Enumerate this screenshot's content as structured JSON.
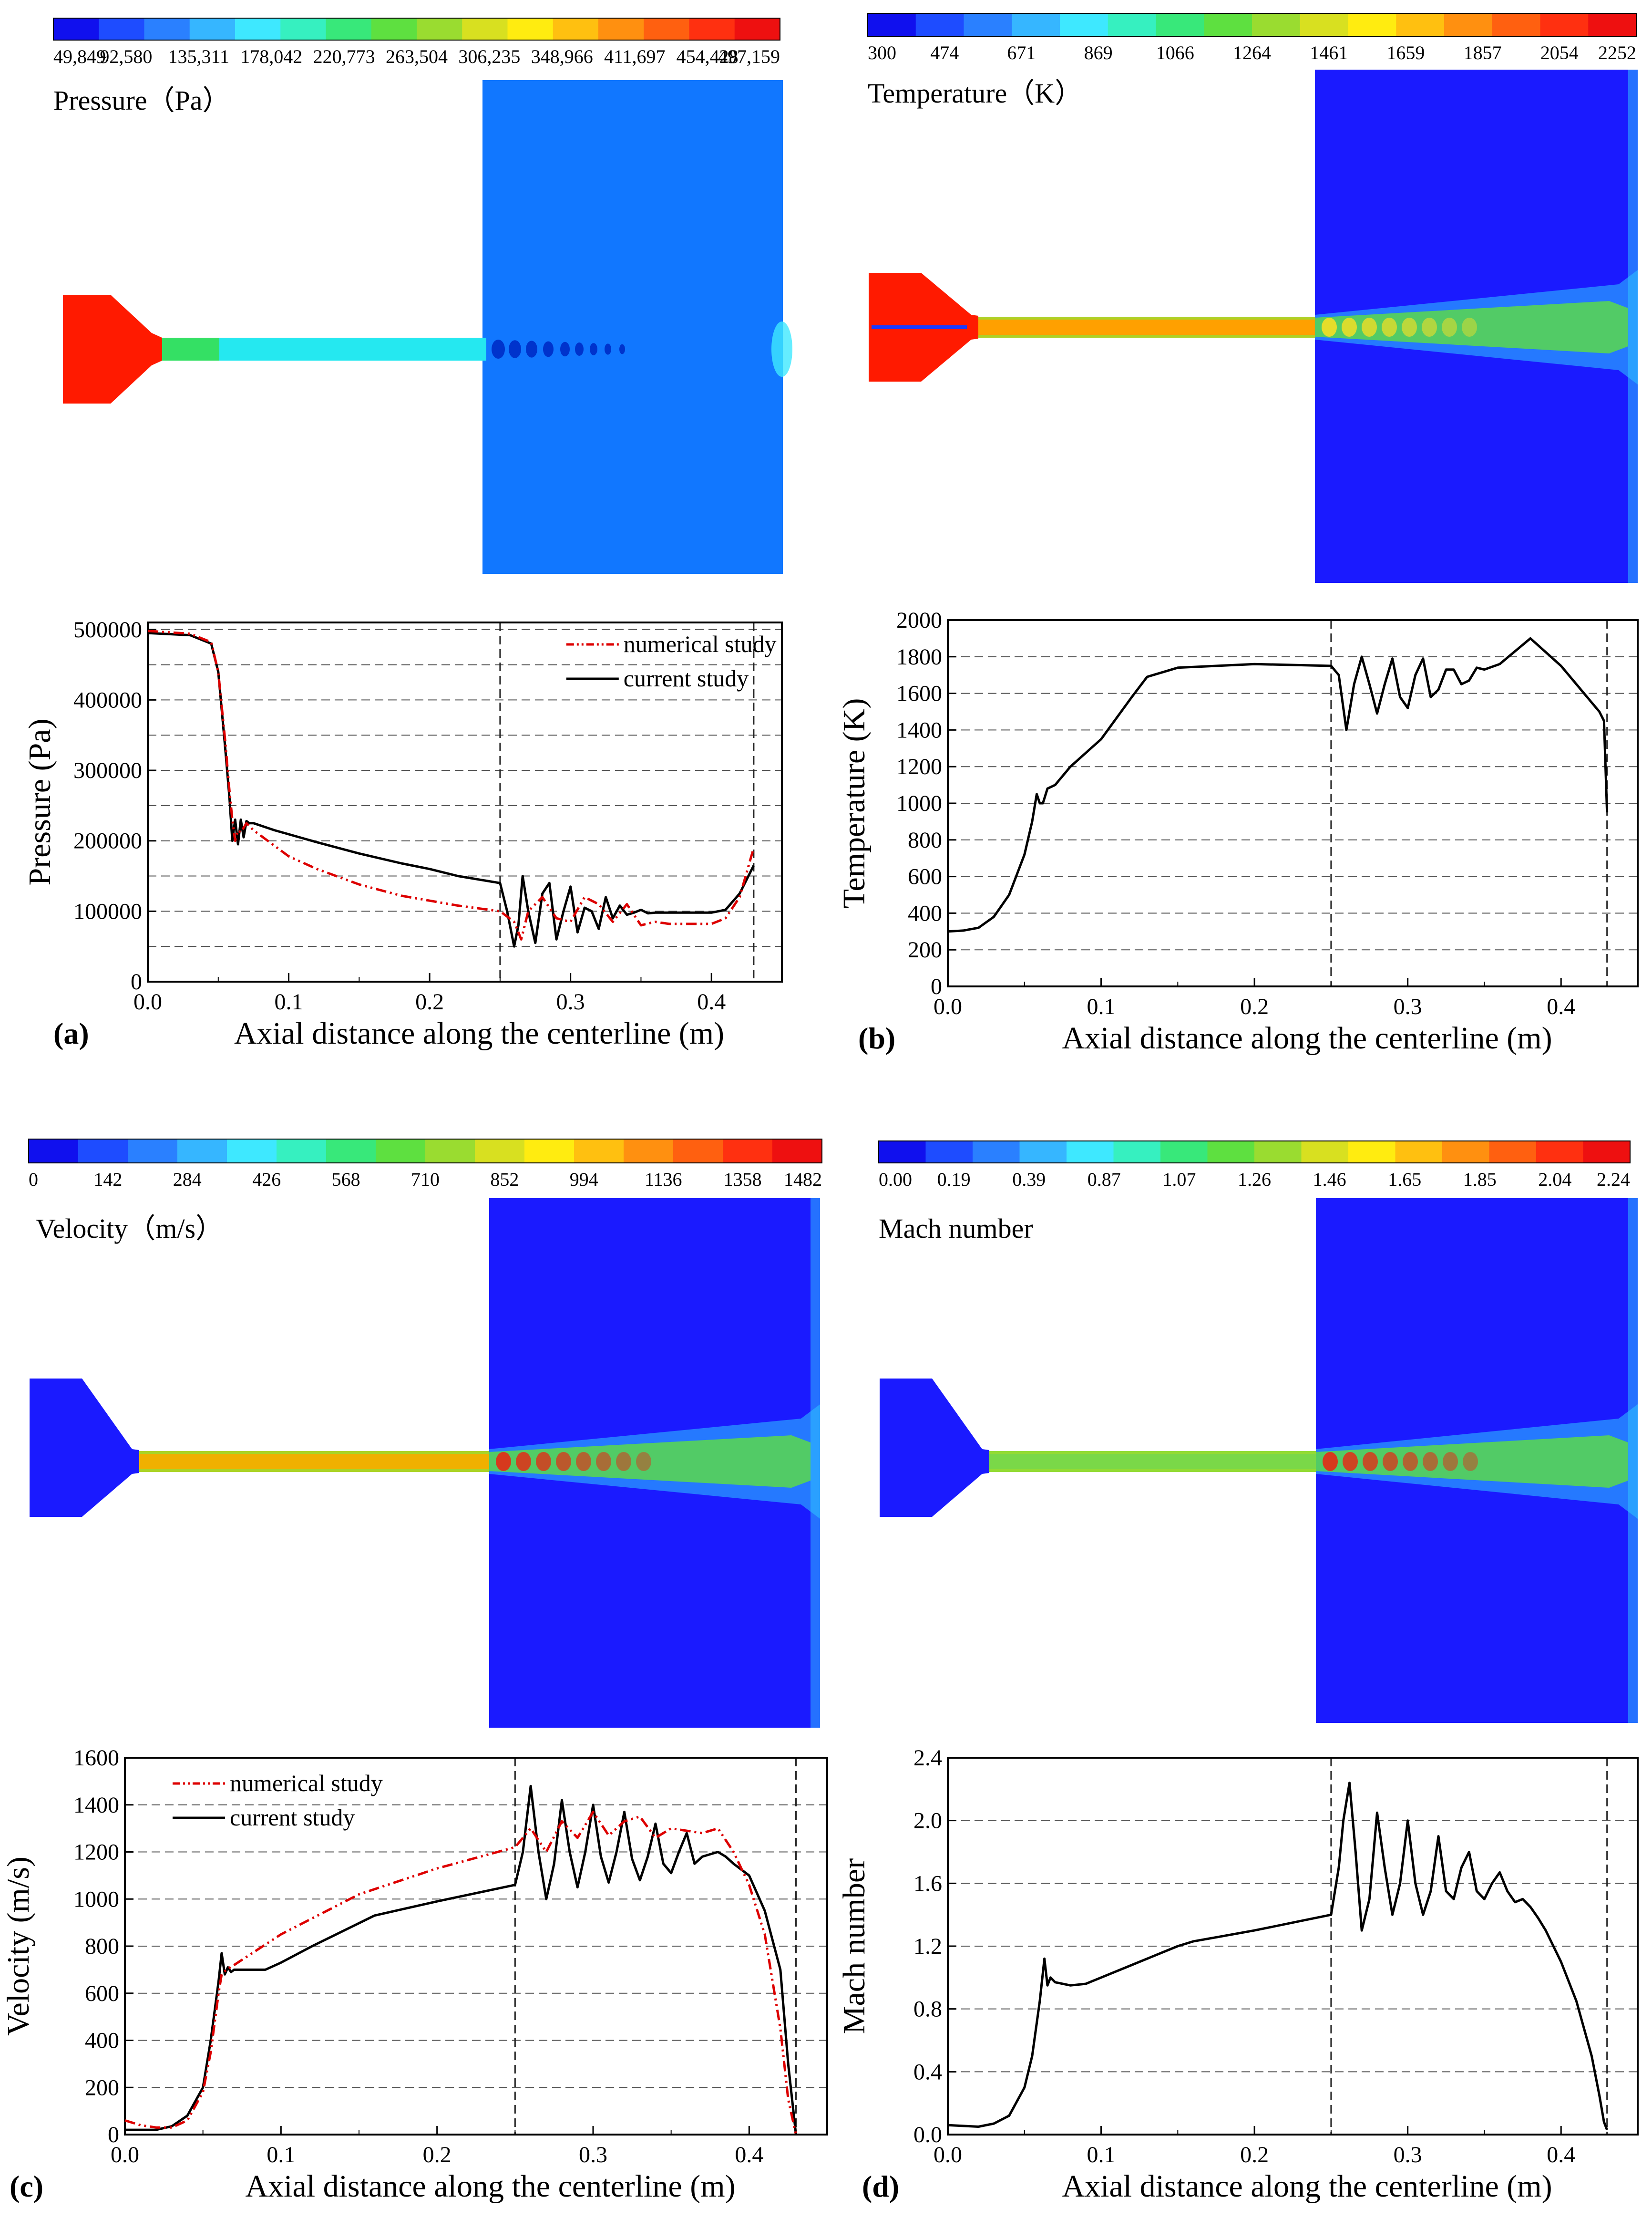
{
  "panels": [
    {
      "id": "a",
      "field": {
        "title": "Pressure（Pa）",
        "colorbar_ticks": [
          "49,849",
          "92,580",
          "135,311",
          "178,042",
          "220,773",
          "263,504",
          "306,235",
          "348,966",
          "411,697",
          "454,428",
          "497,159"
        ],
        "colors": {
          "nozzle": "#ff1a00",
          "channel_in": "#34e064",
          "channel": "#25e8f0",
          "chamber": "#1177ff",
          "shock_cells": "#0033cc"
        }
      },
      "chart_data": {
        "type": "line",
        "panel_label": "(a)",
        "title": "",
        "xlabel": "Axial distance along the centerline (m)",
        "ylabel": "Pressure (Pa)",
        "xlim": [
          0.0,
          0.45
        ],
        "ylim": [
          0,
          510000
        ],
        "x_ticks": [
          0.0,
          0.1,
          0.2,
          0.3,
          0.4
        ],
        "x_tick_labels": [
          "0.0",
          "0.1",
          "0.2",
          "0.3",
          "0.4"
        ],
        "y_ticks": [
          0,
          100000,
          200000,
          300000,
          400000,
          500000
        ],
        "y_tick_labels": [
          "0",
          "100000",
          "200000",
          "300000",
          "400000",
          "500000"
        ],
        "grid_y": [
          50000,
          100000,
          150000,
          200000,
          250000,
          300000,
          350000,
          400000,
          450000,
          500000
        ],
        "vlines": [
          0.25,
          0.43
        ],
        "legend": {
          "entries": [
            "numerical study",
            "current study"
          ],
          "placement": "top-right"
        },
        "series": [
          {
            "name": "current study",
            "color": "#000000",
            "dash": "solid",
            "x": [
              0,
              0.03,
              0.045,
              0.05,
              0.055,
              0.058,
              0.06,
              0.062,
              0.064,
              0.066,
              0.068,
              0.07,
              0.072,
              0.075,
              0.09,
              0.12,
              0.15,
              0.18,
              0.2,
              0.22,
              0.25,
              0.255,
              0.26,
              0.263,
              0.266,
              0.27,
              0.275,
              0.28,
              0.285,
              0.29,
              0.295,
              0.3,
              0.305,
              0.31,
              0.315,
              0.32,
              0.325,
              0.33,
              0.335,
              0.34,
              0.345,
              0.35,
              0.355,
              0.36,
              0.4,
              0.41,
              0.42,
              0.43
            ],
            "y": [
              495000,
              492000,
              480000,
              440000,
              330000,
              260000,
              200000,
              230000,
              195000,
              230000,
              205000,
              228000,
              225000,
              225000,
              215000,
              198000,
              182000,
              168000,
              160000,
              150000,
              140000,
              100000,
              50000,
              80000,
              150000,
              100000,
              55000,
              125000,
              140000,
              60000,
              100000,
              135000,
              70000,
              105000,
              100000,
              75000,
              120000,
              90000,
              108000,
              95000,
              98000,
              102000,
              97000,
              98000,
              98000,
              102000,
              125000,
              165000
            ]
          },
          {
            "name": "numerical study",
            "color": "#dd0000",
            "dash": "dashdotdot",
            "x": [
              0,
              0.03,
              0.045,
              0.05,
              0.055,
              0.058,
              0.06,
              0.062,
              0.064,
              0.066,
              0.07,
              0.075,
              0.1,
              0.12,
              0.15,
              0.18,
              0.2,
              0.22,
              0.25,
              0.26,
              0.265,
              0.27,
              0.28,
              0.29,
              0.3,
              0.31,
              0.32,
              0.33,
              0.34,
              0.35,
              0.36,
              0.37,
              0.4,
              0.41,
              0.42,
              0.43
            ],
            "y": [
              498000,
              494000,
              482000,
              440000,
              340000,
              270000,
              230000,
              200000,
              215000,
              212000,
              225000,
              215000,
              178000,
              160000,
              138000,
              122000,
              115000,
              108000,
              100000,
              85000,
              60000,
              100000,
              120000,
              90000,
              85000,
              120000,
              110000,
              85000,
              110000,
              80000,
              85000,
              82000,
              82000,
              90000,
              120000,
              190000
            ]
          }
        ]
      }
    },
    {
      "id": "b",
      "field": {
        "title": "Temperature（K）",
        "colorbar_ticks": [
          "300",
          "474",
          "671",
          "869",
          "1066",
          "1264",
          "1461",
          "1659",
          "1857",
          "2054",
          "2252"
        ],
        "colors": {
          "nozzle": "#ff1a00",
          "jet": "#ffa000",
          "chamber": "#1a1aff",
          "plume_edge": "#30c8ff"
        }
      },
      "chart_data": {
        "type": "line",
        "panel_label": "(b)",
        "title": "",
        "xlabel": "Axial distance along the centerline (m)",
        "ylabel": "Temperature (K)",
        "xlim": [
          0.0,
          0.45
        ],
        "ylim": [
          0,
          2000
        ],
        "x_ticks": [
          0.0,
          0.1,
          0.2,
          0.3,
          0.4
        ],
        "x_tick_labels": [
          "0.0",
          "0.1",
          "0.2",
          "0.3",
          "0.4"
        ],
        "y_ticks": [
          0,
          200,
          400,
          600,
          800,
          1000,
          1200,
          1400,
          1600,
          1800,
          2000
        ],
        "y_tick_labels": [
          "0",
          "200",
          "400",
          "600",
          "800",
          "1000",
          "1200",
          "1400",
          "1600",
          "1800",
          "2000"
        ],
        "grid_y": [
          200,
          400,
          600,
          800,
          1000,
          1200,
          1400,
          1600,
          1800
        ],
        "vlines": [
          0.25,
          0.43
        ],
        "series": [
          {
            "name": "temperature",
            "color": "#000000",
            "dash": "solid",
            "x": [
              0,
              0.01,
              0.02,
              0.03,
              0.04,
              0.05,
              0.055,
              0.058,
              0.06,
              0.062,
              0.065,
              0.07,
              0.08,
              0.1,
              0.12,
              0.13,
              0.15,
              0.2,
              0.25,
              0.255,
              0.26,
              0.265,
              0.27,
              0.275,
              0.28,
              0.285,
              0.29,
              0.295,
              0.3,
              0.305,
              0.31,
              0.315,
              0.32,
              0.325,
              0.33,
              0.335,
              0.34,
              0.345,
              0.35,
              0.36,
              0.38,
              0.4,
              0.42,
              0.425,
              0.428,
              0.43
            ],
            "y": [
              300,
              305,
              320,
              380,
              500,
              720,
              900,
              1050,
              1000,
              1000,
              1080,
              1100,
              1200,
              1350,
              1580,
              1690,
              1740,
              1760,
              1750,
              1700,
              1400,
              1650,
              1800,
              1650,
              1490,
              1650,
              1790,
              1580,
              1520,
              1700,
              1790,
              1580,
              1620,
              1730,
              1730,
              1650,
              1670,
              1740,
              1730,
              1760,
              1900,
              1750,
              1550,
              1500,
              1450,
              950
            ]
          }
        ]
      }
    },
    {
      "id": "c",
      "field": {
        "title": "Velocity（m/s）",
        "colorbar_ticks": [
          "0",
          "142",
          "284",
          "426",
          "568",
          "710",
          "852",
          "994",
          "1136",
          "1358",
          "1482"
        ],
        "colors": {
          "nozzle": "#1a1aff",
          "jet": "#f0b000",
          "chamber": "#1a1aff",
          "plume_edge": "#30c8ff"
        }
      },
      "chart_data": {
        "type": "line",
        "panel_label": "(c)",
        "title": "",
        "xlabel": "Axial distance along the centerline (m)",
        "ylabel": "Velocity (m/s)",
        "xlim": [
          0.0,
          0.45
        ],
        "ylim": [
          0,
          1600
        ],
        "x_ticks": [
          0.0,
          0.1,
          0.2,
          0.3,
          0.4
        ],
        "x_tick_labels": [
          "0.0",
          "0.1",
          "0.2",
          "0.3",
          "0.4"
        ],
        "y_ticks": [
          0,
          200,
          400,
          600,
          800,
          1000,
          1200,
          1400,
          1600
        ],
        "y_tick_labels": [
          "0",
          "200",
          "400",
          "600",
          "800",
          "1000",
          "1200",
          "1400",
          "1600"
        ],
        "grid_y": [
          200,
          400,
          600,
          800,
          1000,
          1200,
          1400
        ],
        "vlines": [
          0.25,
          0.43
        ],
        "legend": {
          "entries": [
            "numerical study",
            "current study"
          ],
          "placement": "top-left"
        },
        "series": [
          {
            "name": "current study",
            "color": "#000000",
            "dash": "solid",
            "x": [
              0,
              0.02,
              0.03,
              0.04,
              0.05,
              0.055,
              0.06,
              0.062,
              0.064,
              0.066,
              0.068,
              0.07,
              0.09,
              0.1,
              0.12,
              0.16,
              0.2,
              0.25,
              0.255,
              0.26,
              0.265,
              0.27,
              0.275,
              0.28,
              0.285,
              0.29,
              0.295,
              0.3,
              0.305,
              0.31,
              0.315,
              0.32,
              0.325,
              0.33,
              0.335,
              0.34,
              0.345,
              0.35,
              0.355,
              0.36,
              0.365,
              0.37,
              0.375,
              0.38,
              0.385,
              0.39,
              0.4,
              0.41,
              0.42,
              0.425,
              0.43
            ],
            "y": [
              20,
              20,
              35,
              80,
              200,
              400,
              650,
              770,
              680,
              710,
              690,
              700,
              700,
              730,
              800,
              930,
              990,
              1060,
              1200,
              1480,
              1200,
              1000,
              1150,
              1420,
              1200,
              1050,
              1200,
              1400,
              1180,
              1070,
              1200,
              1370,
              1170,
              1080,
              1180,
              1320,
              1150,
              1110,
              1200,
              1280,
              1150,
              1180,
              1190,
              1200,
              1180,
              1150,
              1100,
              950,
              700,
              300,
              0
            ]
          },
          {
            "name": "numerical study",
            "color": "#dd0000",
            "dash": "dashdotdot",
            "x": [
              0,
              0.01,
              0.02,
              0.03,
              0.04,
              0.05,
              0.055,
              0.06,
              0.062,
              0.065,
              0.07,
              0.1,
              0.15,
              0.2,
              0.25,
              0.26,
              0.27,
              0.28,
              0.29,
              0.3,
              0.31,
              0.32,
              0.33,
              0.34,
              0.35,
              0.36,
              0.37,
              0.38,
              0.39,
              0.4,
              0.41,
              0.42,
              0.425,
              0.43
            ],
            "y": [
              60,
              40,
              30,
              30,
              60,
              180,
              350,
              600,
              680,
              700,
              720,
              850,
              1020,
              1130,
              1220,
              1300,
              1200,
              1330,
              1260,
              1370,
              1270,
              1330,
              1350,
              1260,
              1300,
              1290,
              1280,
              1300,
              1200,
              1060,
              850,
              450,
              150,
              0
            ]
          }
        ]
      }
    },
    {
      "id": "d",
      "field": {
        "title": "Mach number",
        "colorbar_ticks": [
          "0.00",
          "0.19",
          "0.39",
          "0.87",
          "1.07",
          "1.26",
          "1.46",
          "1.65",
          "1.85",
          "2.04",
          "2.24"
        ],
        "colors": {
          "nozzle": "#1a1aff",
          "jet": "#7ad848",
          "chamber": "#1a1aff",
          "plume_edge": "#30c8ff"
        }
      },
      "chart_data": {
        "type": "line",
        "panel_label": "(d)",
        "title": "",
        "xlabel": "Axial distance along the centerline (m)",
        "ylabel": "Mach number",
        "xlim": [
          0.0,
          0.45
        ],
        "ylim": [
          0.0,
          2.4
        ],
        "x_ticks": [
          0.0,
          0.1,
          0.2,
          0.3,
          0.4
        ],
        "x_tick_labels": [
          "0.0",
          "0.1",
          "0.2",
          "0.3",
          "0.4"
        ],
        "y_ticks": [
          0.0,
          0.4,
          0.8,
          1.2,
          1.6,
          2.0,
          2.4
        ],
        "y_tick_labels": [
          "0.0",
          "0.4",
          "0.8",
          "1.2",
          "1.6",
          "2.0",
          "2.4"
        ],
        "grid_y": [
          0.4,
          0.8,
          1.2,
          1.6,
          2.0
        ],
        "vlines": [
          0.25,
          0.43
        ],
        "series": [
          {
            "name": "mach",
            "color": "#000000",
            "dash": "solid",
            "x": [
              0,
              0.02,
              0.03,
              0.04,
              0.05,
              0.055,
              0.06,
              0.063,
              0.065,
              0.067,
              0.07,
              0.08,
              0.09,
              0.1,
              0.12,
              0.15,
              0.16,
              0.2,
              0.25,
              0.255,
              0.258,
              0.262,
              0.266,
              0.27,
              0.275,
              0.28,
              0.285,
              0.29,
              0.295,
              0.3,
              0.305,
              0.31,
              0.315,
              0.32,
              0.325,
              0.33,
              0.335,
              0.34,
              0.345,
              0.35,
              0.355,
              0.36,
              0.365,
              0.37,
              0.375,
              0.38,
              0.385,
              0.39,
              0.4,
              0.41,
              0.42,
              0.425,
              0.428,
              0.43
            ],
            "y": [
              0.06,
              0.05,
              0.07,
              0.12,
              0.3,
              0.5,
              0.85,
              1.12,
              0.95,
              1.0,
              0.97,
              0.95,
              0.96,
              1.0,
              1.08,
              1.2,
              1.23,
              1.3,
              1.4,
              1.7,
              2.0,
              2.24,
              1.8,
              1.3,
              1.5,
              2.05,
              1.7,
              1.4,
              1.6,
              2.0,
              1.6,
              1.4,
              1.55,
              1.9,
              1.55,
              1.5,
              1.7,
              1.8,
              1.55,
              1.5,
              1.6,
              1.67,
              1.55,
              1.48,
              1.5,
              1.45,
              1.38,
              1.3,
              1.1,
              0.85,
              0.5,
              0.25,
              0.08,
              0.03
            ]
          }
        ]
      }
    }
  ]
}
